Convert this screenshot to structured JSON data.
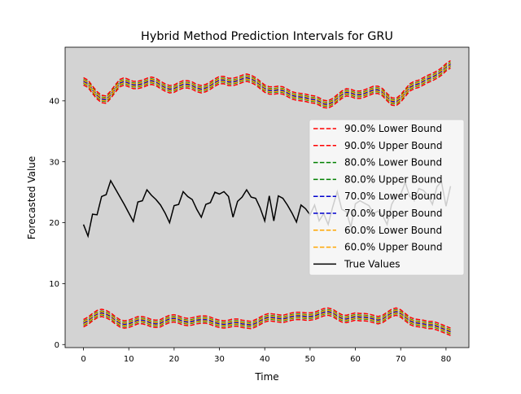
{
  "chart_data": {
    "type": "line",
    "title": "Hybrid Method Prediction Intervals for GRU",
    "xlabel": "Time",
    "ylabel": "Forecasted Value",
    "xlim": [
      -4.05,
      85.05
    ],
    "ylim": [
      -0.5,
      48.8
    ],
    "xticks": [
      0,
      10,
      20,
      30,
      40,
      50,
      60,
      70,
      80
    ],
    "yticks": [
      0,
      10,
      20,
      30,
      40
    ],
    "grid": false,
    "plot_background": "#d3d3d3",
    "legend_position": "center-right",
    "series": [
      {
        "name": "90.0% Lower Bound",
        "color": "#ff0000",
        "dash": true,
        "offset": -0.6
      },
      {
        "name": "90.0% Upper Bound",
        "color": "#ff0000",
        "dash": true,
        "offset": 0.6
      },
      {
        "name": "80.0% Lower Bound",
        "color": "#008000",
        "dash": true,
        "offset": -0.3
      },
      {
        "name": "80.0% Upper Bound",
        "color": "#008000",
        "dash": true,
        "offset": 0.3
      },
      {
        "name": "70.0% Lower Bound",
        "color": "#0000cd",
        "dash": true,
        "offset": -0.1
      },
      {
        "name": "70.0% Upper Bound",
        "color": "#0000cd",
        "dash": true,
        "offset": 0.1
      },
      {
        "name": "60.0% Lower Bound",
        "color": "#ffa500",
        "dash": true,
        "offset": 0.2
      },
      {
        "name": "60.0% Upper Bound",
        "color": "#ffa500",
        "dash": true,
        "offset": -0.2
      },
      {
        "name": "True Values",
        "color": "#000000",
        "dash": false
      }
    ],
    "upper_band_center": [
      43.2,
      42.8,
      41.8,
      40.9,
      40.3,
      40.2,
      41.0,
      42.0,
      42.9,
      43.2,
      42.9,
      42.6,
      42.6,
      42.8,
      43.1,
      43.3,
      43.1,
      42.6,
      42.2,
      41.9,
      42.0,
      42.4,
      42.7,
      42.7,
      42.5,
      42.1,
      41.9,
      42.1,
      42.5,
      43.0,
      43.4,
      43.4,
      43.1,
      43.1,
      43.3,
      43.6,
      43.8,
      43.6,
      43.2,
      42.6,
      42.0,
      41.7,
      41.7,
      41.8,
      41.7,
      41.3,
      40.9,
      40.7,
      40.6,
      40.5,
      40.3,
      40.2,
      39.9,
      39.5,
      39.4,
      39.8,
      40.4,
      41.0,
      41.4,
      41.3,
      41.0,
      41.0,
      41.2,
      41.5,
      41.8,
      41.8,
      41.4,
      40.6,
      39.9,
      39.8,
      40.4,
      41.3,
      42.2,
      42.6,
      42.8,
      43.2,
      43.6,
      43.9,
      44.3,
      44.8,
      45.5,
      46.0
    ],
    "lower_band_center": [
      3.5,
      3.9,
      4.5,
      5.0,
      5.2,
      5.0,
      4.6,
      4.0,
      3.5,
      3.3,
      3.4,
      3.7,
      4.0,
      4.0,
      3.8,
      3.5,
      3.4,
      3.5,
      3.9,
      4.2,
      4.3,
      4.1,
      3.8,
      3.7,
      3.8,
      4.0,
      4.1,
      4.1,
      3.9,
      3.6,
      3.4,
      3.3,
      3.4,
      3.6,
      3.6,
      3.4,
      3.3,
      3.2,
      3.5,
      3.9,
      4.3,
      4.5,
      4.4,
      4.3,
      4.2,
      4.4,
      4.6,
      4.7,
      4.7,
      4.6,
      4.6,
      4.7,
      5.0,
      5.3,
      5.4,
      5.2,
      4.7,
      4.3,
      4.2,
      4.4,
      4.6,
      4.5,
      4.5,
      4.4,
      4.2,
      4.0,
      4.2,
      4.7,
      5.2,
      5.4,
      5.1,
      4.5,
      3.9,
      3.6,
      3.5,
      3.4,
      3.2,
      3.2,
      3.0,
      2.7,
      2.4,
      2.1
    ],
    "true_values": [
      19.7,
      17.8,
      21.4,
      21.3,
      24.3,
      24.6,
      26.9,
      25.6,
      24.3,
      23.0,
      21.6,
      20.2,
      23.4,
      23.6,
      25.4,
      24.5,
      23.8,
      22.9,
      21.6,
      20.0,
      22.8,
      23.0,
      25.1,
      24.3,
      23.8,
      22.2,
      20.9,
      23.0,
      23.3,
      25.0,
      24.7,
      25.1,
      24.3,
      20.9,
      23.5,
      24.2,
      25.4,
      24.2,
      24.0,
      22.4,
      20.3,
      24.4,
      20.3,
      24.4,
      24.0,
      22.9,
      21.6,
      20.1,
      22.9,
      22.3,
      21.3,
      22.9,
      20.3,
      21.5,
      19.7,
      22.6,
      25.1,
      22.2,
      21.8,
      19.3,
      23.1,
      23.6,
      23.2,
      22.8,
      21.5,
      21.9,
      21.2,
      19.7,
      23.0,
      24.4,
      24.7,
      26.6,
      24.3,
      23.6,
      25.6,
      25.3,
      24.5,
      23.0,
      25.9,
      26.7,
      22.7,
      26.0
    ]
  }
}
